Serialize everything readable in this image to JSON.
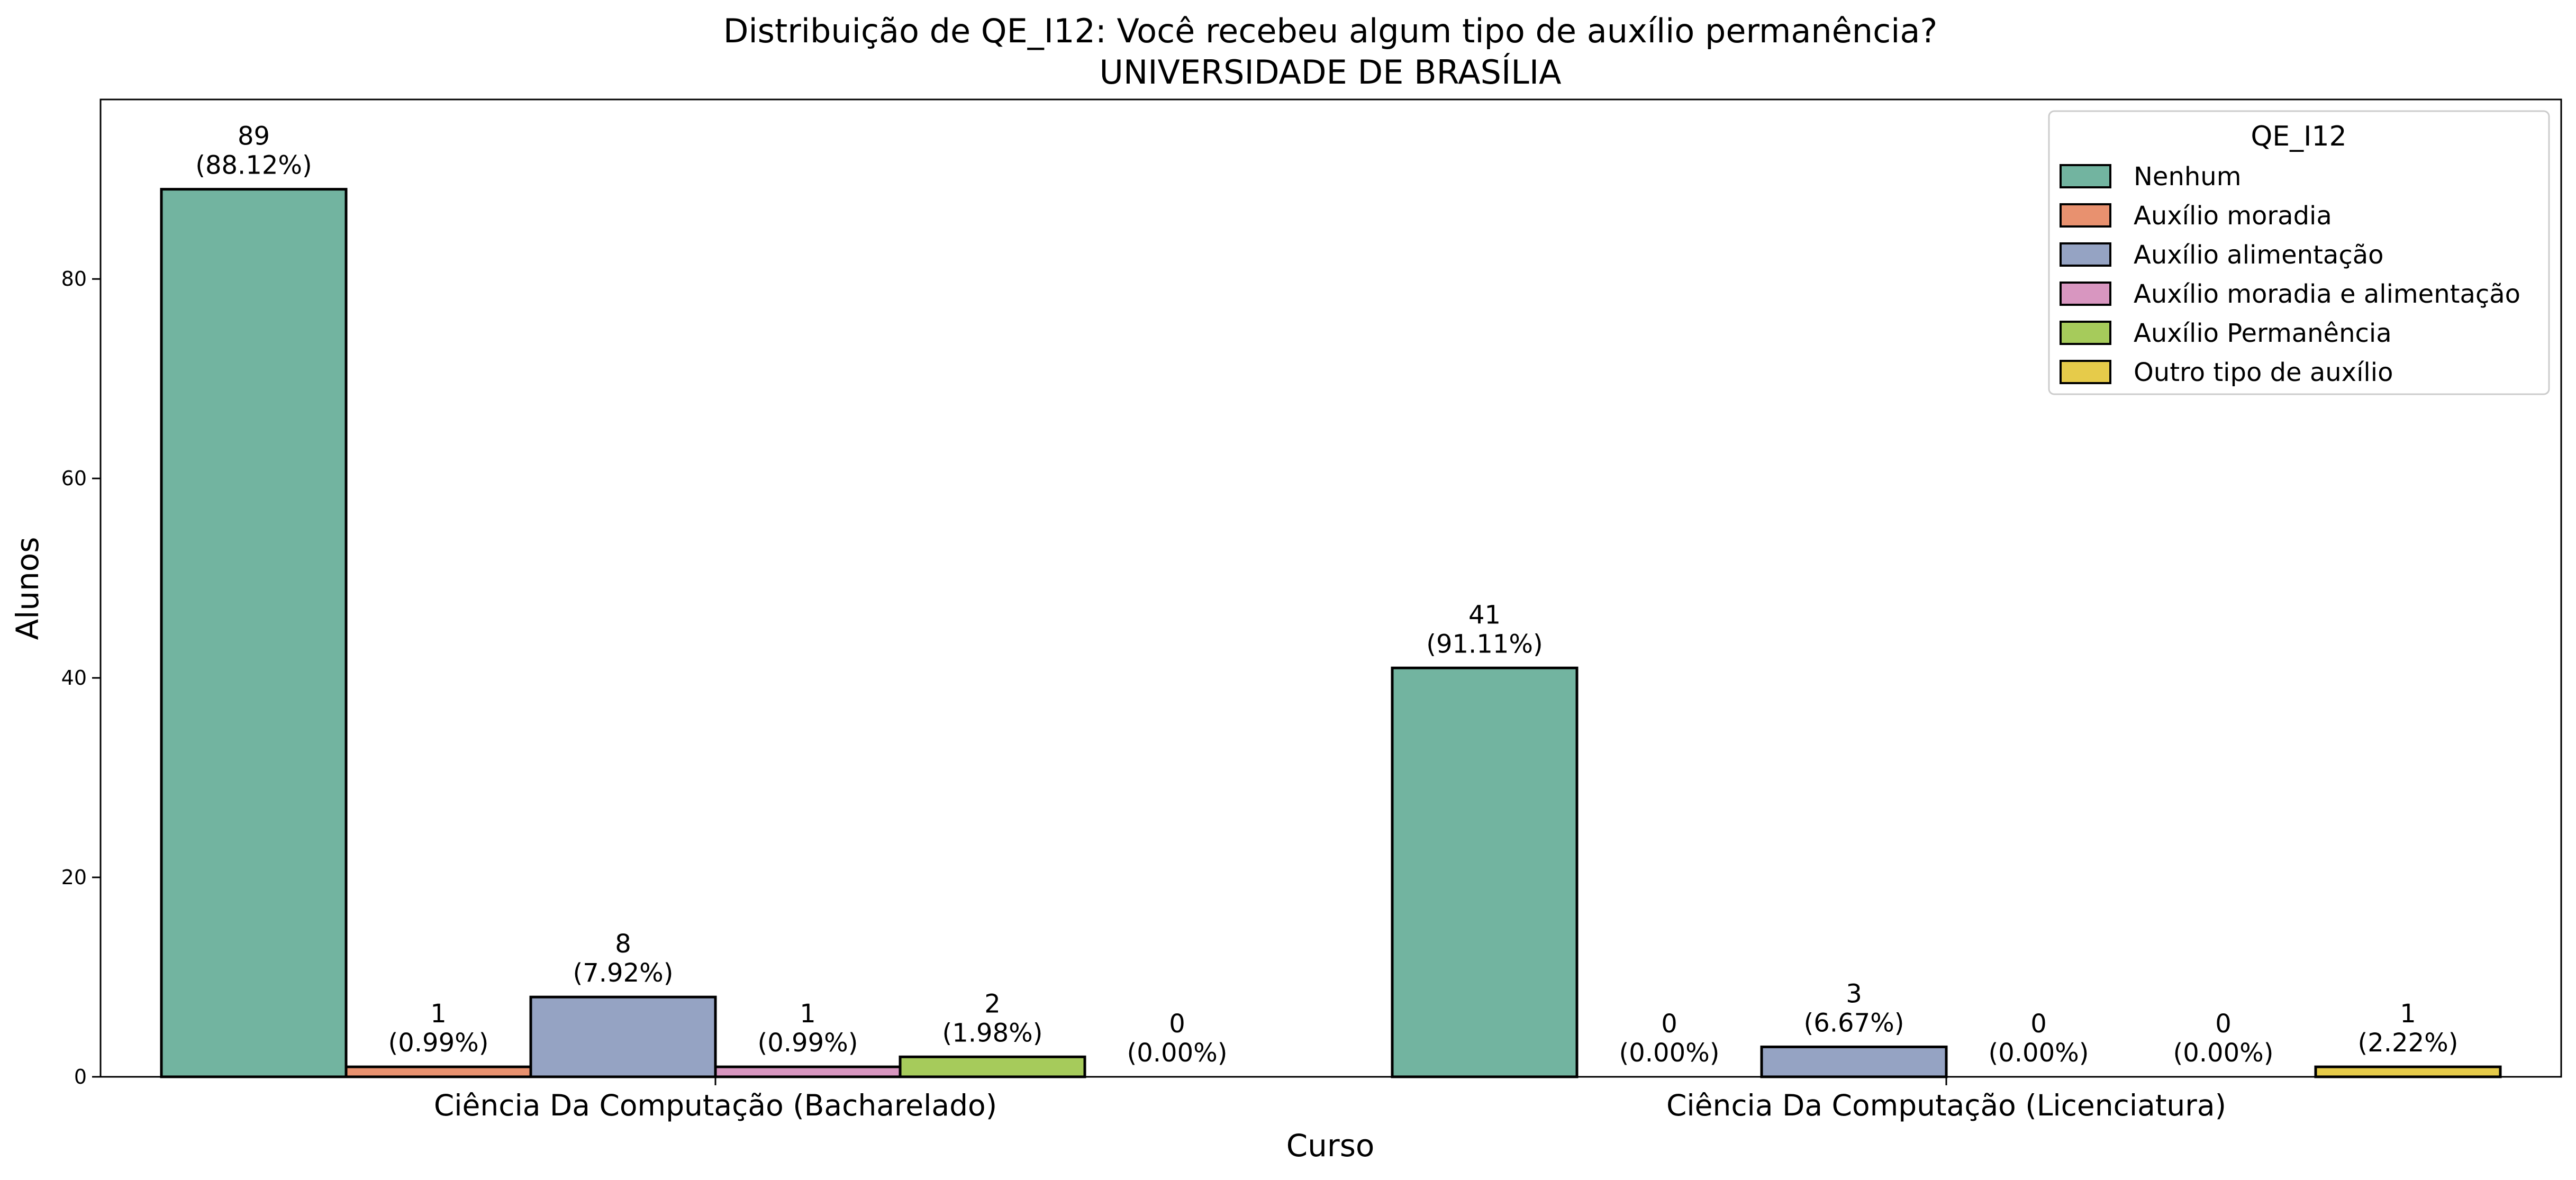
{
  "chart_data": {
    "type": "bar",
    "title": "Distribuição de QE_I12: Você recebeu algum tipo de auxílio permanência?",
    "subtitle": "UNIVERSIDADE DE BRASÍLIA",
    "xlabel": "Curso",
    "ylabel": "Alunos",
    "ylim": [
      0,
      98
    ],
    "yticks": [
      0,
      20,
      40,
      60,
      80
    ],
    "grid": false,
    "legend_title": "QE_I12",
    "legend_position": "top-right",
    "categories": [
      "Ciência Da Computação (Bacharelado)",
      "Ciência Da Computação (Licenciatura)"
    ],
    "series": [
      {
        "name": "Nenhum",
        "color": "#72b4a0",
        "values": [
          89,
          41
        ],
        "labels": [
          "(88.12%)",
          "(91.11%)"
        ]
      },
      {
        "name": "Auxílio moradia",
        "color": "#e8916f",
        "values": [
          1,
          0
        ],
        "labels": [
          "(0.99%)",
          "(0.00%)"
        ]
      },
      {
        "name": "Auxílio alimentação",
        "color": "#95a3c3",
        "values": [
          8,
          3
        ],
        "labels": [
          "(7.92%)",
          "(6.67%)"
        ]
      },
      {
        "name": "Auxílio moradia e alimentação",
        "color": "#d896c0",
        "values": [
          1,
          0
        ],
        "labels": [
          "(0.99%)",
          "(0.00%)"
        ]
      },
      {
        "name": "Auxílio Permanência",
        "color": "#a6cb5b",
        "values": [
          2,
          0
        ],
        "labels": [
          "(1.98%)",
          "(0.00%)"
        ]
      },
      {
        "name": "Outro tipo de auxílio",
        "color": "#e6cb4a",
        "values": [
          0,
          1
        ],
        "labels": [
          "(0.00%)",
          "(2.22%)"
        ]
      }
    ]
  }
}
